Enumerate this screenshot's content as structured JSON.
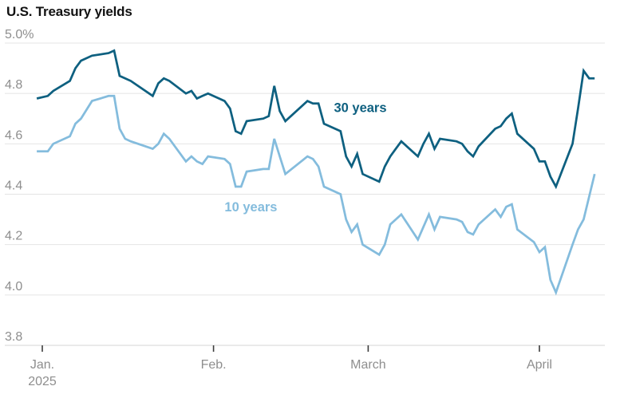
{
  "header": {
    "title": "U.S. Treasury yields"
  },
  "style": {
    "colors": {
      "background": "#ffffff",
      "title_text": "#121212",
      "axis_label_text": "#8e8e8e",
      "gridline": "#e4e4e4",
      "axis_line": "#d6d6d6",
      "tick_mark": "#3c3c3c",
      "line_30_years": "#0e6080",
      "line_10_years": "#84bcdd"
    }
  },
  "chart_data": {
    "type": "line",
    "title": "U.S. Treasury yields",
    "unit": "%",
    "grid": "horizontal-only",
    "legend_position": "inline-labels-on-lines",
    "y_axis": {
      "range": [
        3.8,
        5.0
      ],
      "ticks": [
        {
          "label": "5.0%",
          "value": 5.0
        },
        {
          "label": "4.8",
          "value": 4.8
        },
        {
          "label": "4.6",
          "value": 4.6
        },
        {
          "label": "4.4",
          "value": 4.4
        },
        {
          "label": "4.2",
          "value": 4.2
        },
        {
          "label": "4.0",
          "value": 4.0
        },
        {
          "label": "3.8",
          "value": 3.8
        }
      ]
    },
    "x_axis": {
      "ticks": [
        {
          "label": "Jan.",
          "sublabel": "2025",
          "day": 0
        },
        {
          "label": "Feb.",
          "sublabel": "",
          "day": 31
        },
        {
          "label": "March",
          "sublabel": "",
          "day": 59
        },
        {
          "label": "April",
          "sublabel": "",
          "day": 90
        }
      ],
      "domain_days": [
        -2,
        101
      ]
    },
    "days_since_jan1": [
      -1,
      1,
      2,
      5,
      6,
      7,
      9,
      12,
      13,
      14,
      15,
      16,
      20,
      21,
      22,
      23,
      26,
      27,
      28,
      29,
      30,
      33,
      34,
      35,
      36,
      37,
      40,
      41,
      42,
      43,
      44,
      48,
      49,
      50,
      51,
      54,
      55,
      56,
      57,
      58,
      61,
      62,
      63,
      64,
      65,
      68,
      69,
      70,
      71,
      72,
      75,
      76,
      77,
      78,
      79,
      82,
      83,
      84,
      85,
      86,
      89,
      90,
      91,
      92,
      93,
      96,
      97,
      98,
      99,
      100
    ],
    "series": [
      {
        "name": "30 years",
        "color": "#0e6080",
        "label": {
          "text": "30 years",
          "day": 52.8,
          "value": 4.745
        },
        "values": [
          4.78,
          4.79,
          4.81,
          4.85,
          4.9,
          4.93,
          4.95,
          4.96,
          4.97,
          4.87,
          4.86,
          4.85,
          4.79,
          4.84,
          4.86,
          4.85,
          4.8,
          4.81,
          4.78,
          4.79,
          4.8,
          4.77,
          4.74,
          4.65,
          4.64,
          4.69,
          4.7,
          4.71,
          4.83,
          4.73,
          4.69,
          4.77,
          4.76,
          4.76,
          4.68,
          4.65,
          4.55,
          4.51,
          4.56,
          4.48,
          4.45,
          4.51,
          4.55,
          4.58,
          4.61,
          4.55,
          4.6,
          4.64,
          4.58,
          4.62,
          4.61,
          4.6,
          4.57,
          4.55,
          4.59,
          4.66,
          4.67,
          4.7,
          4.72,
          4.64,
          4.58,
          4.53,
          4.53,
          4.47,
          4.43,
          4.6,
          4.74,
          4.89,
          4.86,
          4.86
        ]
      },
      {
        "name": "10 years",
        "color": "#84bcdd",
        "label": {
          "text": "10 years",
          "day": 33.0,
          "value": 4.35
        },
        "values": [
          4.57,
          4.57,
          4.6,
          4.63,
          4.68,
          4.7,
          4.77,
          4.79,
          4.79,
          4.66,
          4.62,
          4.61,
          4.58,
          4.6,
          4.64,
          4.62,
          4.53,
          4.55,
          4.53,
          4.52,
          4.55,
          4.54,
          4.52,
          4.43,
          4.43,
          4.49,
          4.5,
          4.5,
          4.62,
          4.55,
          4.48,
          4.55,
          4.54,
          4.51,
          4.43,
          4.4,
          4.3,
          4.25,
          4.28,
          4.2,
          4.16,
          4.2,
          4.28,
          4.3,
          4.32,
          4.22,
          4.27,
          4.32,
          4.26,
          4.31,
          4.3,
          4.29,
          4.25,
          4.24,
          4.28,
          4.34,
          4.31,
          4.35,
          4.36,
          4.26,
          4.21,
          4.17,
          4.19,
          4.06,
          4.01,
          4.2,
          4.26,
          4.3,
          4.39,
          4.48
        ]
      }
    ]
  }
}
